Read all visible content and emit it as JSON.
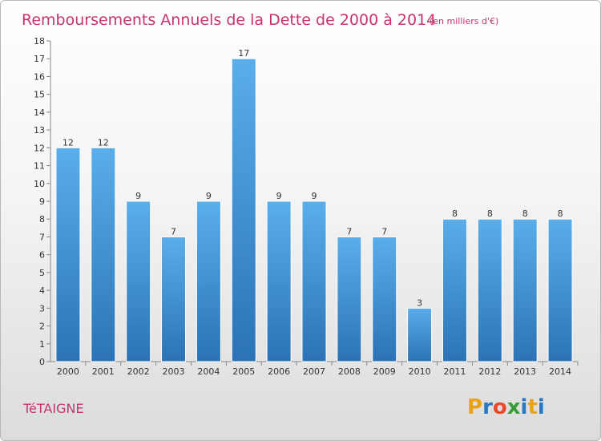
{
  "header": {
    "title": "Remboursements Annuels de la Dette de 2000 à 2014",
    "unit": "(en milliers d'€)"
  },
  "footer": {
    "commune": "TéTAIGNE",
    "logo_letters": [
      "P",
      "r",
      "o",
      "x",
      "i",
      "t",
      "i"
    ],
    "logo_colors": [
      "#e8a21c",
      "#2a78c2",
      "#e84a2a",
      "#3a9b3a",
      "#2a78c2",
      "#e8a21c",
      "#2a78c2"
    ]
  },
  "chart_data": {
    "type": "bar",
    "title": "Remboursements Annuels de la Dette de 2000 à 2014",
    "subtitle": "(en milliers d'€)",
    "xlabel": "",
    "ylabel": "",
    "categories": [
      "2000",
      "2001",
      "2002",
      "2003",
      "2004",
      "2005",
      "2006",
      "2007",
      "2008",
      "2009",
      "2010",
      "2011",
      "2012",
      "2013",
      "2014"
    ],
    "values": [
      12,
      12,
      9,
      7,
      9,
      17,
      9,
      9,
      7,
      7,
      3,
      8,
      8,
      8,
      8
    ],
    "ylim": [
      0,
      18
    ],
    "yticks": [
      "0",
      "1",
      "2",
      "3",
      "4",
      "5",
      "6",
      "7",
      "8",
      "9",
      "10",
      "11",
      "12",
      "13",
      "14",
      "15",
      "16",
      "17",
      "18"
    ],
    "grid": false,
    "legend": "none",
    "bar_color": "#4a9fe0",
    "bar_color_dark": "#2a6fb0"
  }
}
